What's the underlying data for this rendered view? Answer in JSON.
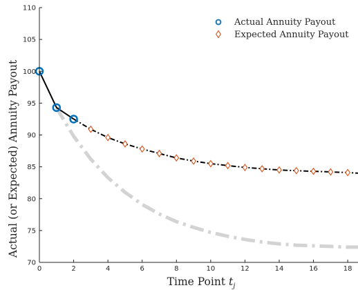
{
  "chart_data": {
    "type": "line",
    "title": "",
    "xlabel": "Time Point",
    "xlabel_var": "t",
    "xlabel_sub": "j",
    "ylabel": "Actual (or Expected) Annuity Payout",
    "xlim": [
      0,
      18.6
    ],
    "ylim": [
      70,
      110
    ],
    "xticks": [
      0,
      2,
      4,
      6,
      8,
      10,
      12,
      14,
      16,
      18
    ],
    "yticks": [
      70,
      75,
      80,
      85,
      90,
      95,
      100,
      105,
      110
    ],
    "grid": false,
    "legend_position": "top-right",
    "legend": [
      {
        "label": "Actual Annuity Payout",
        "marker": "circle",
        "color": "#1f77b4"
      },
      {
        "label": "Expected Annuity Payout",
        "marker": "diamond",
        "color": "#d95319"
      }
    ],
    "series": [
      {
        "name": "Actual Annuity Payout",
        "style": "solid",
        "line_color": "#000000",
        "marker": "circle",
        "marker_color": "#0072bd",
        "x": [
          0,
          1,
          2
        ],
        "y": [
          100,
          94.3,
          92.5
        ]
      },
      {
        "name": "Expected Annuity Payout",
        "style": "dashdot",
        "line_color": "#000000",
        "marker": "diamond",
        "marker_color": "#d95319",
        "x": [
          2,
          3,
          4,
          5,
          6,
          7,
          8,
          9,
          10,
          11,
          12,
          13,
          14,
          15,
          16,
          17,
          18,
          18.6
        ],
        "y": [
          92.5,
          90.9,
          89.6,
          88.6,
          87.8,
          87.1,
          86.4,
          85.9,
          85.5,
          85.2,
          84.9,
          84.7,
          84.5,
          84.4,
          84.3,
          84.2,
          84.1,
          84.0
        ],
        "marker_x": [
          3,
          4,
          5,
          6,
          7,
          8,
          9,
          10,
          11,
          12,
          13,
          14,
          15,
          16,
          17,
          18
        ]
      },
      {
        "style": "dashdot",
        "line_color": "#d3d3d3",
        "x": [
          1,
          1.5,
          2,
          3,
          4,
          5,
          6,
          7,
          8,
          9,
          10,
          11,
          12,
          13,
          14,
          15,
          16,
          17,
          18,
          18.6
        ],
        "y": [
          94.3,
          92.0,
          89.8,
          86.2,
          83.3,
          81.0,
          79.1,
          77.6,
          76.4,
          75.5,
          74.7,
          74.1,
          73.6,
          73.2,
          72.9,
          72.7,
          72.6,
          72.5,
          72.4,
          72.4
        ]
      }
    ]
  }
}
